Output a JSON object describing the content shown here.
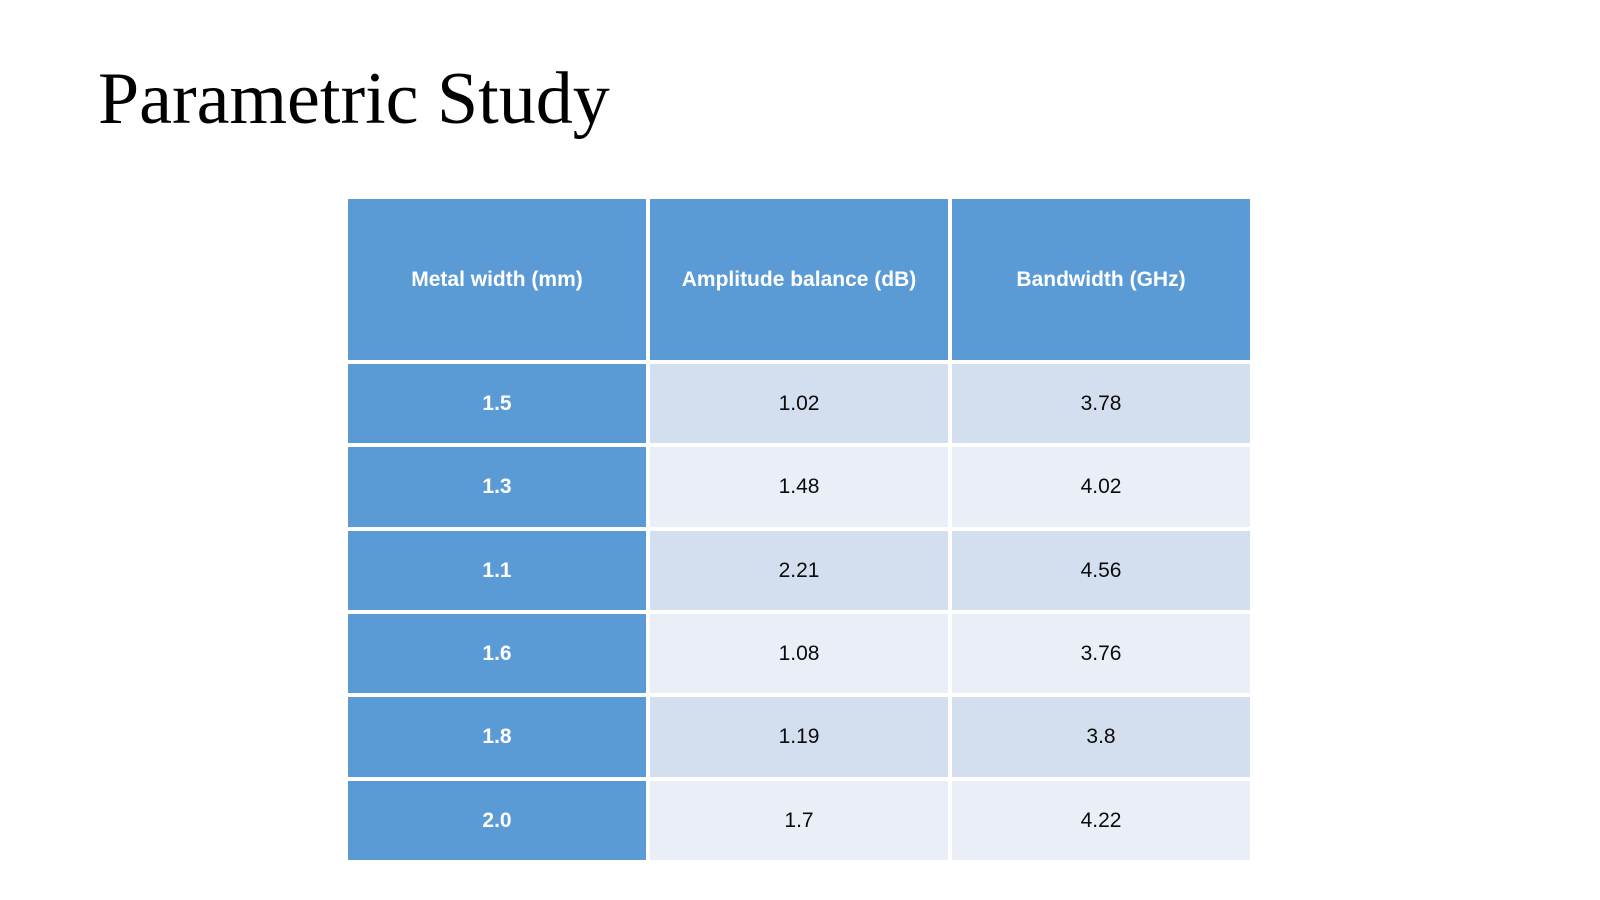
{
  "slide": {
    "title": "Parametric Study",
    "background_color": "#ffffff"
  },
  "table": {
    "columns": [
      "Metal width (mm)",
      "Amplitude balance (dB)",
      "Bandwidth (GHz)"
    ],
    "rows": [
      [
        "1.5",
        "1.02",
        "3.78"
      ],
      [
        "1.3",
        "1.48",
        "4.02"
      ],
      [
        "1.1",
        "2.21",
        "4.56"
      ],
      [
        "1.6",
        "1.08",
        "3.76"
      ],
      [
        "1.8",
        "1.19",
        "3.8"
      ],
      [
        "2.0",
        "1.7",
        "4.22"
      ]
    ]
  },
  "colors": {
    "accent_blue": "#5b9bd5",
    "band_dark": "#d3dfee",
    "band_light": "#e9eef7",
    "header_text": "#ffffff",
    "body_text": "#0b0b0b",
    "title_text": "#000000"
  },
  "chart_data": {
    "type": "table",
    "title": "Parametric Study",
    "columns": [
      "Metal width (mm)",
      "Amplitude balance (dB)",
      "Bandwidth (GHz)"
    ],
    "metal_width_mm": [
      1.5,
      1.3,
      1.1,
      1.6,
      1.8,
      2.0
    ],
    "amplitude_balance_db": [
      1.02,
      1.48,
      2.21,
      1.08,
      1.19,
      1.7
    ],
    "bandwidth_ghz": [
      3.78,
      4.02,
      4.56,
      3.76,
      3.8,
      4.22
    ]
  }
}
